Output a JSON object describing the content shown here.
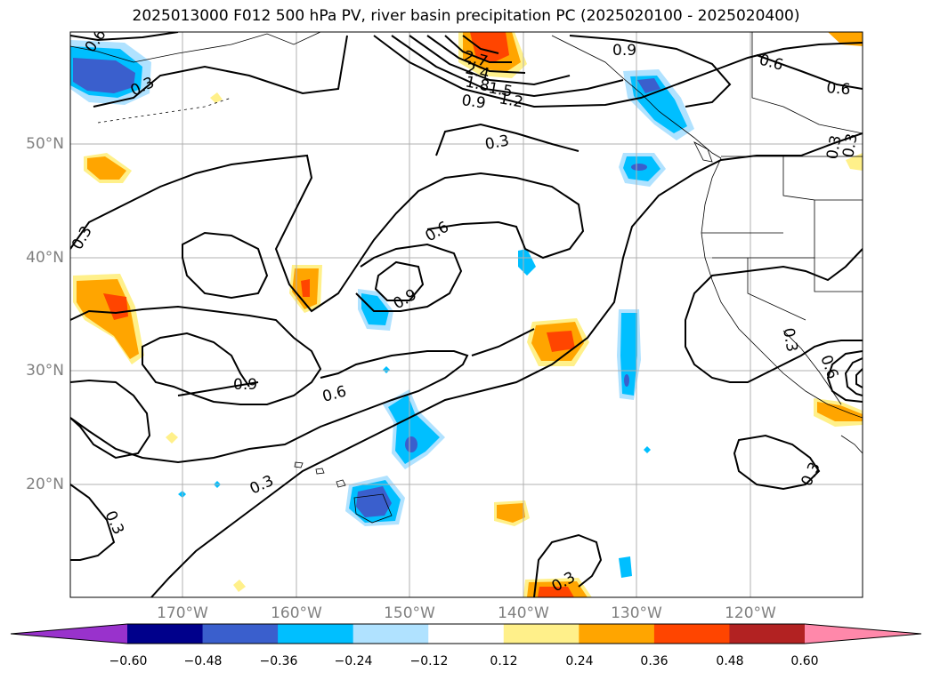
{
  "title": "2025013000 F012 500 hPa PV, river basin precipitation PC (2025020100 - 2025020400)",
  "lat_labels": [
    "50°N",
    "40°N",
    "30°N",
    "20°N"
  ],
  "lon_labels": [
    "170°W",
    "160°W",
    "150°W",
    "140°W",
    "130°W",
    "120°W"
  ],
  "contour_labels": [
    "0.6",
    "0.3",
    "2.7",
    "2.4",
    "1.8",
    "1.5",
    "1.2",
    "0.9",
    "0.9",
    "0.6",
    "0.6",
    "0.3",
    "0.3",
    "0.3",
    "0.6",
    "0.9",
    "0.9",
    "0.6",
    "0.3",
    "0.3",
    "0.3",
    "0.3",
    "0.3",
    "0.6",
    "0.3"
  ],
  "colorbar": {
    "ticks": [
      "−0.60",
      "−0.48",
      "−0.36",
      "−0.24",
      "−0.12",
      "0.12",
      "0.24",
      "0.36",
      "0.48",
      "0.60"
    ],
    "colors": [
      "#9932cc",
      "#00008b",
      "#3a5fcd",
      "#00bfff",
      "#b0e2ff",
      "#ffffff",
      "#fff08a",
      "#ffa500",
      "#ff4500",
      "#b22222",
      "#ff88aa"
    ]
  },
  "colors": {
    "contour": "#000000",
    "grid": "#b0b0b0",
    "axis_label": "#808080"
  }
}
